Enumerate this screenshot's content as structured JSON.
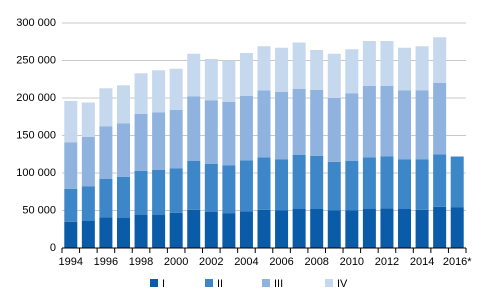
{
  "chart_data": {
    "type": "stacked_bar",
    "categories": [
      "1994",
      null,
      "1996",
      null,
      "1998",
      null,
      "2000",
      null,
      "2002",
      null,
      "2004",
      null,
      "2006",
      null,
      "2008",
      null,
      "2010",
      null,
      "2012",
      null,
      "2014",
      null,
      "2016*"
    ],
    "series": [
      {
        "name": "I",
        "color": "#0a5ca8",
        "values": [
          35000,
          36000,
          41000,
          40000,
          44000,
          44000,
          47000,
          51000,
          48000,
          46000,
          49000,
          51000,
          50000,
          52000,
          52000,
          50000,
          50000,
          52000,
          53000,
          52000,
          51000,
          55000,
          54000
        ]
      },
      {
        "name": "II",
        "color": "#3d87c8",
        "values": [
          44000,
          46000,
          51000,
          55000,
          59000,
          60000,
          59000,
          65000,
          64000,
          64000,
          68000,
          70000,
          68000,
          72000,
          71000,
          65000,
          66000,
          69000,
          69000,
          66000,
          67000,
          70000,
          68000
        ]
      },
      {
        "name": "III",
        "color": "#8fb3de",
        "values": [
          62000,
          66000,
          70000,
          71000,
          76000,
          77000,
          78000,
          86000,
          85000,
          85000,
          86000,
          89000,
          90000,
          88000,
          88000,
          85000,
          90000,
          95000,
          94000,
          92000,
          92000,
          95000,
          null
        ]
      },
      {
        "name": "IV",
        "color": "#c5d8ee",
        "values": [
          55000,
          46000,
          51000,
          51000,
          54000,
          56000,
          55000,
          57000,
          55000,
          55000,
          57000,
          59000,
          59000,
          62000,
          53000,
          59000,
          59000,
          60000,
          60000,
          57000,
          59000,
          61000,
          null
        ]
      }
    ],
    "ylim": [
      0,
      300000
    ],
    "yticks": [
      0,
      {
        "value": 50000,
        "label": "50 000"
      },
      {
        "value": 100000,
        "label": "100 000"
      },
      {
        "value": 150000,
        "label": "150 000"
      },
      {
        "value": 200000,
        "label": "200 000"
      },
      {
        "value": 250000,
        "label": "250 000"
      },
      {
        "value": 300000,
        "label": "300 000"
      }
    ],
    "grid": true
  }
}
